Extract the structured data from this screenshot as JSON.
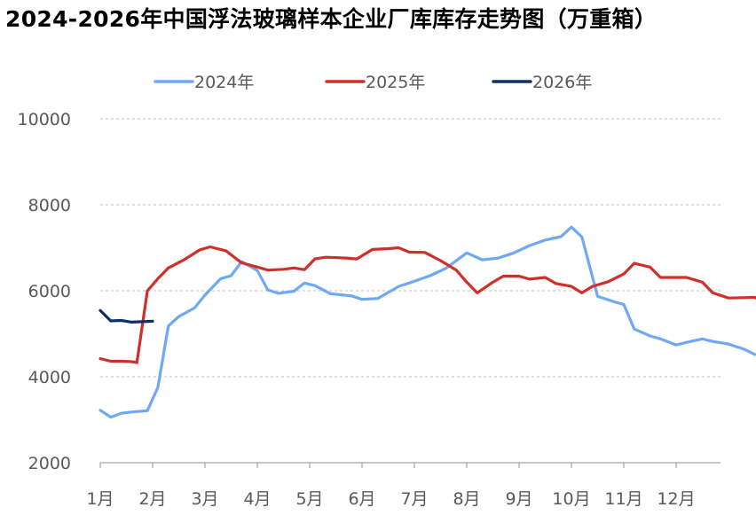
{
  "chart_data": {
    "type": "line",
    "title": "2024-2026年中国浮法玻璃样本企业厂库库存走势图（万重箱）",
    "xlabel": "",
    "ylabel": "",
    "ylim": [
      2000,
      10000
    ],
    "yticks": [
      2000,
      4000,
      6000,
      8000,
      10000
    ],
    "categories": [
      "1月",
      "2月",
      "3月",
      "4月",
      "5月",
      "6月",
      "7月",
      "8月",
      "9月",
      "10月",
      "11月",
      "12月"
    ],
    "grid": true,
    "legend_position": "top",
    "series": [
      {
        "name": "2024年",
        "color": "#6FA8F5",
        "points": [
          [
            0.0,
            3220
          ],
          [
            0.2,
            3060
          ],
          [
            0.4,
            3150
          ],
          [
            0.6,
            3180
          ],
          [
            0.9,
            3210
          ],
          [
            1.1,
            3750
          ],
          [
            1.3,
            5180
          ],
          [
            1.5,
            5400
          ],
          [
            1.8,
            5600
          ],
          [
            2.0,
            5900
          ],
          [
            2.3,
            6280
          ],
          [
            2.5,
            6350
          ],
          [
            2.7,
            6680
          ],
          [
            3.0,
            6470
          ],
          [
            3.2,
            6020
          ],
          [
            3.4,
            5940
          ],
          [
            3.7,
            5990
          ],
          [
            3.9,
            6180
          ],
          [
            4.1,
            6120
          ],
          [
            4.4,
            5930
          ],
          [
            4.8,
            5880
          ],
          [
            5.0,
            5800
          ],
          [
            5.3,
            5820
          ],
          [
            5.7,
            6100
          ],
          [
            6.0,
            6220
          ],
          [
            6.3,
            6350
          ],
          [
            6.6,
            6520
          ],
          [
            7.0,
            6880
          ],
          [
            7.3,
            6720
          ],
          [
            7.6,
            6760
          ],
          [
            7.9,
            6880
          ],
          [
            8.2,
            7050
          ],
          [
            8.5,
            7180
          ],
          [
            8.8,
            7260
          ],
          [
            9.0,
            7480
          ],
          [
            9.2,
            7250
          ],
          [
            9.5,
            5870
          ],
          [
            9.8,
            5750
          ],
          [
            10.0,
            5680
          ],
          [
            10.2,
            5110
          ],
          [
            10.5,
            4950
          ],
          [
            10.7,
            4880
          ],
          [
            11.0,
            4740
          ],
          [
            11.2,
            4800
          ],
          [
            11.5,
            4880
          ],
          [
            11.7,
            4820
          ],
          [
            12.0,
            4760
          ],
          [
            12.3,
            4640
          ],
          [
            12.5,
            4520
          ]
        ]
      },
      {
        "name": "2025年",
        "color": "#D0302A",
        "points": [
          [
            0.0,
            4420
          ],
          [
            0.2,
            4360
          ],
          [
            0.4,
            4360
          ],
          [
            0.6,
            4350
          ],
          [
            0.7,
            4330
          ],
          [
            0.9,
            6000
          ],
          [
            1.1,
            6280
          ],
          [
            1.3,
            6530
          ],
          [
            1.6,
            6720
          ],
          [
            1.9,
            6950
          ],
          [
            2.1,
            7020
          ],
          [
            2.4,
            6930
          ],
          [
            2.7,
            6650
          ],
          [
            3.0,
            6550
          ],
          [
            3.2,
            6480
          ],
          [
            3.5,
            6500
          ],
          [
            3.7,
            6530
          ],
          [
            3.9,
            6490
          ],
          [
            4.1,
            6740
          ],
          [
            4.3,
            6780
          ],
          [
            4.7,
            6760
          ],
          [
            4.9,
            6740
          ],
          [
            5.2,
            6960
          ],
          [
            5.5,
            6980
          ],
          [
            5.7,
            7000
          ],
          [
            5.9,
            6900
          ],
          [
            6.2,
            6890
          ],
          [
            6.5,
            6700
          ],
          [
            6.8,
            6480
          ],
          [
            7.0,
            6200
          ],
          [
            7.2,
            5950
          ],
          [
            7.5,
            6200
          ],
          [
            7.7,
            6340
          ],
          [
            8.0,
            6340
          ],
          [
            8.2,
            6270
          ],
          [
            8.5,
            6310
          ],
          [
            8.7,
            6170
          ],
          [
            9.0,
            6100
          ],
          [
            9.2,
            5950
          ],
          [
            9.4,
            6100
          ],
          [
            9.7,
            6210
          ],
          [
            10.0,
            6390
          ],
          [
            10.2,
            6640
          ],
          [
            10.5,
            6550
          ],
          [
            10.7,
            6310
          ],
          [
            11.0,
            6310
          ],
          [
            11.2,
            6310
          ],
          [
            11.5,
            6200
          ],
          [
            11.7,
            5950
          ],
          [
            12.0,
            5830
          ],
          [
            12.3,
            5840
          ],
          [
            12.5,
            5850
          ],
          [
            12.7,
            5690
          ]
        ]
      },
      {
        "name": "2026年",
        "color": "#0E2F6B",
        "points": [
          [
            0.0,
            5540
          ],
          [
            0.2,
            5300
          ],
          [
            0.4,
            5310
          ],
          [
            0.6,
            5270
          ],
          [
            0.8,
            5280
          ],
          [
            1.0,
            5290
          ]
        ]
      }
    ]
  }
}
